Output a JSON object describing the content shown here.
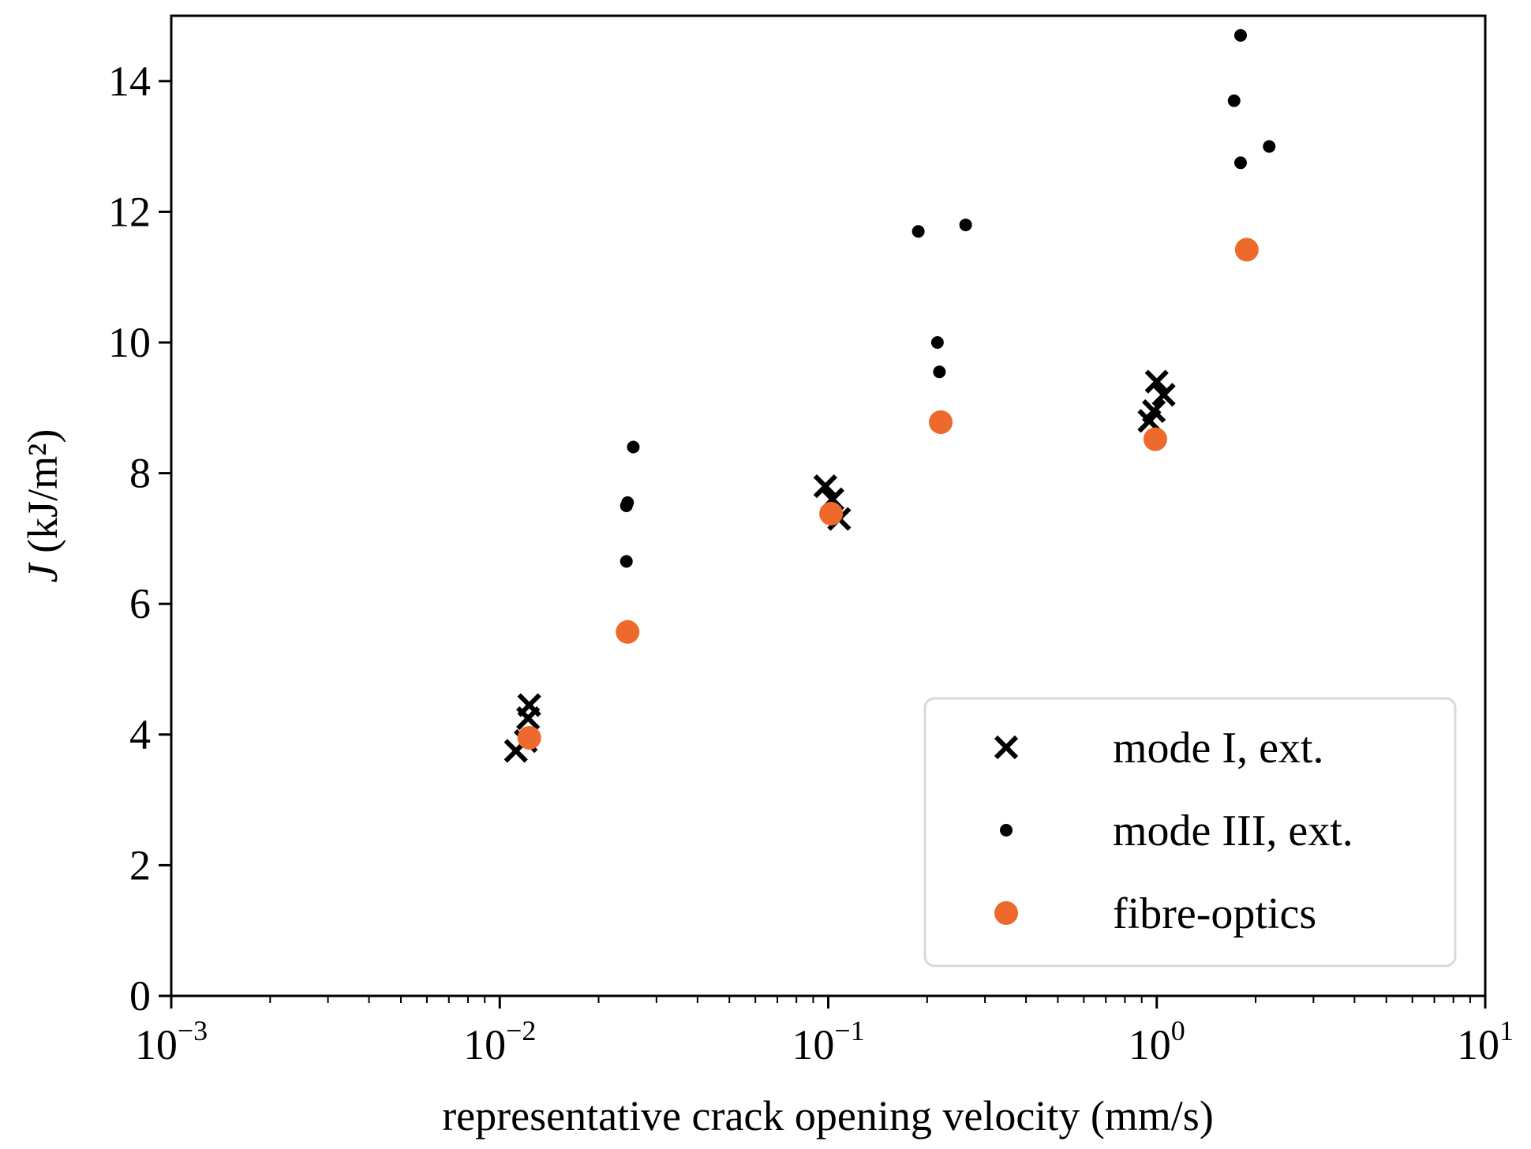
{
  "chart_data": {
    "type": "scatter",
    "title": "",
    "xlabel": "representative crack opening velocity (mm/s)",
    "ylabel": {
      "symbol": "J",
      "unit": " (kJ/m²)"
    },
    "xscale": "log",
    "xlim": [
      0.001,
      10
    ],
    "ylim": [
      0,
      15
    ],
    "x_tick_labels": [
      {
        "value": 0.001,
        "base": "10",
        "exp": "−3"
      },
      {
        "value": 0.01,
        "base": "10",
        "exp": "−2"
      },
      {
        "value": 0.1,
        "base": "10",
        "exp": "−1"
      },
      {
        "value": 1,
        "base": "10",
        "exp": "0"
      },
      {
        "value": 10,
        "base": "10",
        "exp": "1"
      }
    ],
    "y_ticks": [
      0,
      2,
      4,
      6,
      8,
      10,
      12,
      14
    ],
    "grid": false,
    "legend_position": "lower-right",
    "series": [
      {
        "name": "mode I, ext.",
        "marker": "x",
        "color": "#000000",
        "points": [
          [
            0.0112,
            3.75
          ],
          [
            0.0122,
            4.25
          ],
          [
            0.0123,
            4.45
          ],
          [
            0.012,
            3.9
          ],
          [
            0.098,
            7.8
          ],
          [
            0.103,
            7.6
          ],
          [
            0.108,
            7.3
          ],
          [
            0.95,
            8.8
          ],
          [
            0.98,
            8.95
          ],
          [
            1.0,
            9.4
          ],
          [
            1.05,
            9.2
          ]
        ]
      },
      {
        "name": "mode III, ext.",
        "marker": "dot",
        "color": "#000000",
        "points": [
          [
            0.0245,
            7.55
          ],
          [
            0.0243,
            7.5
          ],
          [
            0.0243,
            6.65
          ],
          [
            0.0255,
            8.4
          ],
          [
            0.188,
            11.7
          ],
          [
            0.215,
            10.0
          ],
          [
            0.218,
            9.55
          ],
          [
            0.262,
            11.8
          ],
          [
            1.72,
            13.7
          ],
          [
            1.8,
            14.7
          ],
          [
            1.8,
            12.75
          ],
          [
            2.2,
            13.0
          ]
        ]
      },
      {
        "name": "fibre-optics",
        "marker": "circle",
        "color": "#EE6A2C",
        "points": [
          [
            0.0123,
            3.95
          ],
          [
            0.0245,
            5.57
          ],
          [
            0.102,
            7.38
          ],
          [
            0.22,
            8.78
          ],
          [
            0.99,
            8.52
          ],
          [
            1.88,
            11.42
          ]
        ]
      }
    ]
  }
}
